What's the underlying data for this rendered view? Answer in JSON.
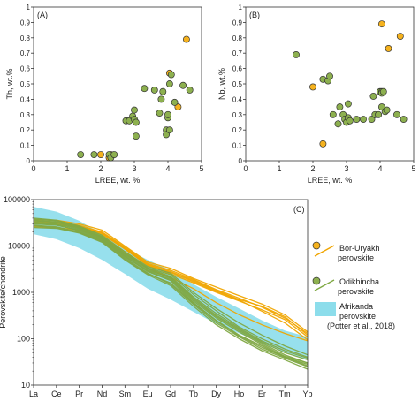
{
  "colors": {
    "bor_uryakh": "#F5B21E",
    "odikhincha": "#8DB04F",
    "afrikanda": "#8CDDEB",
    "axis": "#333333",
    "line_bor": "#F0A500",
    "line_odi": "#7FA843"
  },
  "chart_data": [
    {
      "id": "A",
      "type": "scatter",
      "panel_label": "(A)",
      "xlabel": "LREE, wt. %",
      "ylabel": "Th, wt.%",
      "xlim": [
        0,
        5
      ],
      "ylim": [
        0,
        1
      ],
      "xticks": [
        "0",
        "1",
        "2",
        "3",
        "4",
        "5"
      ],
      "yticks": [
        "0",
        "0.1",
        "0.2",
        "0.3",
        "0.4",
        "0.5",
        "0.6",
        "0.7",
        "0.8",
        "0.9",
        "1"
      ],
      "series": [
        {
          "name": "Bor-Uryakh perovskite",
          "color_key": "bor_uryakh",
          "points": [
            [
              2.0,
              0.04
            ],
            [
              2.3,
              0.04
            ],
            [
              2.25,
              0.02
            ],
            [
              4.05,
              0.57
            ],
            [
              4.3,
              0.35
            ],
            [
              4.55,
              0.79
            ]
          ]
        },
        {
          "name": "Odikhincha perovskite",
          "color_key": "odikhincha",
          "points": [
            [
              1.4,
              0.04
            ],
            [
              1.8,
              0.04
            ],
            [
              2.25,
              0.04
            ],
            [
              2.3,
              0.02
            ],
            [
              2.4,
              0.04
            ],
            [
              2.75,
              0.26
            ],
            [
              2.85,
              0.26
            ],
            [
              2.95,
              0.29
            ],
            [
              3.0,
              0.33
            ],
            [
              3.0,
              0.27
            ],
            [
              3.05,
              0.25
            ],
            [
              3.05,
              0.16
            ],
            [
              3.3,
              0.47
            ],
            [
              3.6,
              0.46
            ],
            [
              3.75,
              0.31
            ],
            [
              3.8,
              0.4
            ],
            [
              3.85,
              0.45
            ],
            [
              3.95,
              0.2
            ],
            [
              3.95,
              0.17
            ],
            [
              4.0,
              0.28
            ],
            [
              4.0,
              0.3
            ],
            [
              4.05,
              0.5
            ],
            [
              4.1,
              0.56
            ],
            [
              4.2,
              0.38
            ],
            [
              4.45,
              0.49
            ],
            [
              4.65,
              0.46
            ],
            [
              4.05,
              0.2
            ]
          ]
        }
      ]
    },
    {
      "id": "B",
      "type": "scatter",
      "panel_label": "(B)",
      "xlabel": "LREE, wt. %",
      "ylabel": "Nb, wt.%",
      "xlim": [
        0,
        5
      ],
      "ylim": [
        0,
        1
      ],
      "xticks": [
        "0",
        "1",
        "2",
        "3",
        "4",
        "5"
      ],
      "yticks": [
        "0",
        "0.1",
        "0.2",
        "0.3",
        "0.4",
        "0.5",
        "0.6",
        "0.7",
        "0.8",
        "0.9",
        "1"
      ],
      "series": [
        {
          "name": "Bor-Uryakh perovskite",
          "color_key": "bor_uryakh",
          "points": [
            [
              2.0,
              0.48
            ],
            [
              2.3,
              0.11
            ],
            [
              4.05,
              0.89
            ],
            [
              4.25,
              0.73
            ],
            [
              4.6,
              0.81
            ]
          ]
        },
        {
          "name": "Odikhincha perovskite",
          "color_key": "odikhincha",
          "points": [
            [
              1.5,
              0.69
            ],
            [
              2.3,
              0.53
            ],
            [
              2.45,
              0.52
            ],
            [
              2.5,
              0.55
            ],
            [
              2.6,
              0.3
            ],
            [
              2.75,
              0.24
            ],
            [
              2.8,
              0.35
            ],
            [
              2.9,
              0.3
            ],
            [
              2.95,
              0.27
            ],
            [
              3.0,
              0.25
            ],
            [
              3.05,
              0.28
            ],
            [
              3.05,
              0.37
            ],
            [
              3.1,
              0.26
            ],
            [
              3.3,
              0.27
            ],
            [
              3.5,
              0.27
            ],
            [
              3.75,
              0.27
            ],
            [
              3.8,
              0.42
            ],
            [
              3.85,
              0.3
            ],
            [
              3.95,
              0.3
            ],
            [
              4.0,
              0.45
            ],
            [
              4.05,
              0.45
            ],
            [
              4.05,
              0.44
            ],
            [
              4.05,
              0.35
            ],
            [
              4.1,
              0.45
            ],
            [
              4.15,
              0.32
            ],
            [
              4.2,
              0.33
            ],
            [
              4.5,
              0.3
            ],
            [
              4.7,
              0.27
            ]
          ]
        }
      ]
    },
    {
      "id": "C",
      "type": "line",
      "panel_label": "(C)",
      "ylabel": "Perovskite/chondrite",
      "yscale": "log",
      "ylim": [
        10,
        100000
      ],
      "yticks": [
        "10",
        "100",
        "1000",
        "10000",
        "100000"
      ],
      "categories": [
        "La",
        "Ce",
        "Pr",
        "Nd",
        "Sm",
        "Eu",
        "Gd",
        "Tb",
        "Dy",
        "Ho",
        "Er",
        "Tm",
        "Yb"
      ],
      "band": {
        "name": "Afrikanda perovskite",
        "color_key": "afrikanda",
        "upper": [
          70000,
          55000,
          35000,
          18000,
          9000,
          5000,
          3000,
          1500,
          800,
          450,
          250,
          150,
          110
        ],
        "lower": [
          18000,
          14000,
          9000,
          5000,
          2500,
          1200,
          700,
          380,
          210,
          130,
          80,
          50,
          35
        ]
      },
      "series": [
        {
          "name": "Bor-Uryakh perovskite",
          "color_key": "line_bor",
          "values": [
            33000,
            32000,
            27000,
            19000,
            9000,
            4000,
            2800,
            1800,
            1100,
            700,
            500,
            300,
            120
          ]
        },
        {
          "name": "Bor-Uryakh perovskite",
          "color_key": "line_bor",
          "values": [
            37000,
            36000,
            30000,
            22000,
            10000,
            4500,
            3300,
            2000,
            1300,
            850,
            560,
            330,
            140
          ]
        },
        {
          "name": "Bor-Uryakh perovskite",
          "color_key": "line_bor",
          "values": [
            30000,
            29000,
            25000,
            18000,
            8500,
            3800,
            2500,
            1600,
            1000,
            650,
            420,
            260,
            110
          ]
        },
        {
          "name": "Bor-Uryakh perovskite",
          "color_key": "line_bor",
          "values": [
            35000,
            33000,
            28000,
            20000,
            9500,
            4200,
            3000,
            1900,
            1150,
            750,
            480,
            280,
            130
          ]
        },
        {
          "name": "Bor-Uryakh perovskite",
          "color_key": "line_bor",
          "values": [
            26000,
            25000,
            22000,
            16000,
            7500,
            3300,
            2100,
            1200,
            600,
            330,
            200,
            130,
            90
          ]
        },
        {
          "name": "Bor-Uryakh perovskite",
          "color_key": "line_bor",
          "values": [
            32000,
            30000,
            26000,
            19000,
            8800,
            3900,
            2700,
            1700,
            1050,
            680,
            390,
            220,
            95
          ]
        },
        {
          "name": "Odikhincha perovskite",
          "color_key": "line_odi",
          "values": [
            35000,
            32000,
            24000,
            15000,
            6500,
            3200,
            2000,
            700,
            300,
            150,
            80,
            45,
            30
          ]
        },
        {
          "name": "Odikhincha perovskite",
          "color_key": "line_odi",
          "values": [
            30000,
            28000,
            22000,
            14000,
            6000,
            2800,
            1800,
            600,
            250,
            120,
            70,
            40,
            28
          ]
        },
        {
          "name": "Odikhincha perovskite",
          "color_key": "line_odi",
          "values": [
            38000,
            35000,
            26000,
            16000,
            7000,
            3400,
            2400,
            900,
            400,
            180,
            100,
            60,
            40
          ]
        },
        {
          "name": "Odikhincha perovskite",
          "color_key": "line_odi",
          "values": [
            28000,
            26000,
            20000,
            13000,
            5500,
            2600,
            1500,
            550,
            220,
            110,
            60,
            38,
            25
          ]
        },
        {
          "name": "Odikhincha perovskite",
          "color_key": "line_odi",
          "values": [
            33000,
            30000,
            23000,
            14500,
            6200,
            3000,
            2100,
            750,
            320,
            160,
            85,
            50,
            35
          ]
        },
        {
          "name": "Odikhincha perovskite",
          "color_key": "line_odi",
          "values": [
            25000,
            24000,
            19000,
            12000,
            5000,
            2400,
            1400,
            500,
            200,
            100,
            55,
            35,
            22
          ]
        },
        {
          "name": "Odikhincha perovskite",
          "color_key": "line_odi",
          "values": [
            40000,
            36000,
            27000,
            17000,
            7500,
            3600,
            2600,
            1000,
            450,
            220,
            120,
            70,
            45
          ]
        },
        {
          "name": "Odikhincha perovskite",
          "color_key": "line_odi",
          "values": [
            31000,
            29000,
            21000,
            13500,
            5800,
            2900,
            1900,
            650,
            280,
            140,
            75,
            42,
            30
          ]
        },
        {
          "name": "Odikhincha perovskite",
          "color_key": "line_odi",
          "values": [
            36000,
            33000,
            25000,
            15500,
            6800,
            3300,
            2200,
            800,
            350,
            170,
            90,
            55,
            38
          ]
        },
        {
          "name": "Odikhincha perovskite",
          "color_key": "line_odi",
          "values": [
            27000,
            25000,
            19500,
            12500,
            5200,
            2500,
            1600,
            580,
            240,
            115,
            65,
            40,
            26
          ]
        }
      ],
      "legend": [
        {
          "kind": "marker-line",
          "color_key": "bor_uryakh",
          "label": "Bor-Uryakh perovskite"
        },
        {
          "kind": "marker-line",
          "color_key": "odikhincha",
          "label": "Odikhincha perovskite"
        },
        {
          "kind": "band",
          "color_key": "afrikanda",
          "label": "Afrikanda perovskite (Potter et al., 2018)"
        }
      ],
      "legend_lines": [
        [
          "Bor-Uryakh",
          "perovskite"
        ],
        [
          "Odikhincha",
          "perovskite"
        ],
        [
          "Afrikanda",
          "perovskite",
          "(Potter et al., 2018)"
        ]
      ],
      "legend_position": "right"
    }
  ]
}
